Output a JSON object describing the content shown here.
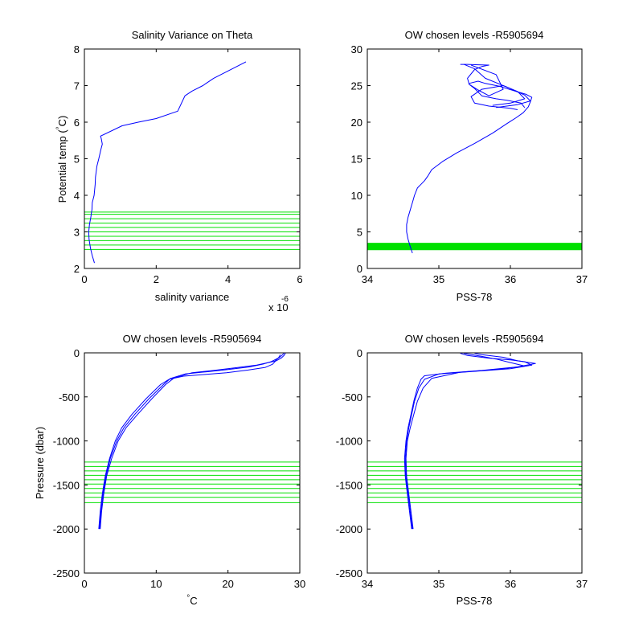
{
  "colors": {
    "profile": "#0000ff",
    "levels": "#00e000",
    "axis": "#000000",
    "background": "#ffffff"
  },
  "chart_data": [
    {
      "id": "tl",
      "type": "line",
      "title": "Salinity Variance on Theta",
      "xlabel": "salinity variance",
      "ylabel": "Potential temp (°C)",
      "ylabel_parts": [
        "Potential temp (",
        "°",
        "C)"
      ],
      "x_exponent_label": {
        "base": "x 10",
        "exp": "-6"
      },
      "xlim": [
        0,
        6
      ],
      "ylim": [
        2,
        8
      ],
      "xticks": [
        0,
        2,
        4,
        6
      ],
      "yticks": [
        2,
        3,
        4,
        5,
        6,
        7,
        8
      ],
      "xtick_labels": [
        "0",
        "2",
        "4",
        "6"
      ],
      "ytick_labels": [
        "2",
        "3",
        "4",
        "5",
        "6",
        "7",
        "8"
      ],
      "series": [
        {
          "x": [
            0.28,
            0.22,
            0.17,
            0.13,
            0.12,
            0.14,
            0.18,
            0.2,
            0.21,
            0.22,
            0.27,
            0.3,
            0.31,
            0.35,
            0.4,
            0.46,
            0.5,
            0.47,
            0.45,
            1.05,
            1.5,
            2.0,
            2.6,
            2.8,
            3.0,
            3.3,
            3.6,
            4.0,
            4.5
          ],
          "y": [
            2.15,
            2.35,
            2.55,
            2.8,
            3.0,
            3.2,
            3.4,
            3.55,
            3.6,
            3.8,
            4.0,
            4.3,
            4.5,
            4.8,
            5.0,
            5.25,
            5.4,
            5.55,
            5.62,
            5.9,
            6.0,
            6.1,
            6.3,
            6.72,
            6.85,
            7.0,
            7.2,
            7.4,
            7.65
          ]
        }
      ],
      "level_lines": [
        2.52,
        2.64,
        2.76,
        2.88,
        3.0,
        3.12,
        3.24,
        3.36,
        3.48,
        3.54
      ]
    },
    {
      "id": "tr",
      "type": "line",
      "title": "OW chosen levels -R5905694",
      "xlabel": "PSS-78",
      "ylabel": "",
      "xlim": [
        34,
        37
      ],
      "ylim": [
        0,
        30
      ],
      "xticks": [
        34,
        35,
        36,
        37
      ],
      "yticks": [
        0,
        5,
        10,
        15,
        20,
        25,
        30
      ],
      "xtick_labels": [
        "34",
        "35",
        "36",
        "37"
      ],
      "ytick_labels": [
        "0",
        "5",
        "10",
        "15",
        "20",
        "25",
        "30"
      ],
      "series": [
        {
          "x": [
            34.63,
            34.6,
            34.57,
            34.55,
            34.55,
            34.57,
            34.6,
            34.63,
            34.66,
            34.7,
            34.75,
            34.8,
            34.85,
            34.9,
            35.05,
            35.25,
            35.5,
            35.75,
            35.95,
            36.08,
            36.18,
            36.25,
            36.28,
            36.3,
            36.22,
            36.05,
            35.85,
            35.65,
            35.55,
            35.42,
            35.4,
            35.5,
            35.6,
            35.7,
            35.55,
            35.4,
            35.3
          ],
          "y": [
            2.1,
            3.0,
            4.0,
            5.0,
            6.0,
            7.0,
            8.0,
            9.0,
            10.0,
            11.0,
            11.5,
            12.0,
            12.7,
            13.5,
            14.6,
            15.8,
            17.1,
            18.5,
            19.8,
            20.6,
            21.3,
            22.1,
            22.8,
            23.4,
            23.8,
            24.3,
            24.9,
            25.3,
            25.6,
            25.3,
            26.0,
            27.2,
            27.6,
            27.8,
            27.85,
            27.9,
            27.9
          ]
        },
        {
          "x": [
            36.2,
            36.15,
            35.95,
            35.8,
            35.6,
            35.5,
            35.42,
            35.55,
            35.7,
            35.9,
            35.8,
            35.45
          ],
          "y": [
            22.0,
            22.6,
            23.0,
            23.2,
            23.6,
            24.6,
            25.2,
            24.4,
            23.6,
            24.5,
            26.5,
            27.8
          ]
        },
        {
          "x": [
            36.1,
            36.0,
            35.7,
            35.5,
            35.45,
            35.6,
            35.9,
            36.1,
            36.2,
            36.0,
            35.75
          ],
          "y": [
            21.7,
            21.9,
            22.2,
            22.6,
            23.5,
            24.5,
            25.0,
            24.2,
            23.2,
            22.6,
            22.3
          ]
        },
        {
          "x": [
            35.35,
            35.5,
            35.65,
            35.95,
            36.2,
            36.28,
            36.1,
            35.8
          ],
          "y": [
            27.9,
            27.3,
            26.0,
            24.8,
            23.7,
            22.9,
            22.4,
            22.0
          ]
        }
      ],
      "level_band": [
        2.5,
        3.5
      ]
    },
    {
      "id": "bl",
      "type": "line",
      "title": "OW chosen levels -R5905694",
      "xlabel": "°C",
      "xlabel_parts": [
        "°",
        "C"
      ],
      "ylabel": "Pressure (dbar)",
      "xlim": [
        0,
        30
      ],
      "ylim": [
        -2500,
        0
      ],
      "xticks": [
        0,
        10,
        20,
        30
      ],
      "yticks": [
        -2500,
        -2000,
        -1500,
        -1000,
        -500,
        0
      ],
      "xtick_labels": [
        "0",
        "10",
        "20",
        "30"
      ],
      "ytick_labels": [
        "-2500",
        "-2000",
        "-1500",
        "-1000",
        "-500",
        "0"
      ],
      "series": [
        {
          "x": [
            2.1,
            2.3,
            2.6,
            3.0,
            3.6,
            4.5,
            5.5,
            7.0,
            9.0,
            11.0,
            12.0,
            14.0,
            17.0,
            20.0,
            23.0,
            25.0,
            26.0,
            26.5,
            27.2,
            27.6,
            27.8
          ],
          "y": [
            -2000,
            -1800,
            -1600,
            -1400,
            -1200,
            -1000,
            -850,
            -700,
            -520,
            -360,
            -290,
            -240,
            -215,
            -190,
            -160,
            -125,
            -100,
            -80,
            -50,
            -20,
            -5
          ]
        },
        {
          "x": [
            2.0,
            2.2,
            2.5,
            2.9,
            3.5,
            4.3,
            5.2,
            6.6,
            8.6,
            10.6,
            11.8,
            13.8,
            16.8,
            19.8,
            22.8,
            25.2,
            26.2,
            26.6,
            27.4,
            27.8,
            28.0
          ],
          "y": [
            -2000,
            -1800,
            -1600,
            -1400,
            -1200,
            -1000,
            -850,
            -700,
            -520,
            -360,
            -300,
            -265,
            -245,
            -225,
            -195,
            -165,
            -130,
            -95,
            -60,
            -30,
            -5
          ]
        },
        {
          "x": [
            2.2,
            2.4,
            2.7,
            3.1,
            3.8,
            4.7,
            5.8,
            7.4,
            9.4,
            11.3,
            12.5,
            15.0,
            18.0,
            21.0,
            24.0,
            26.5,
            27.0,
            27.3
          ],
          "y": [
            -2000,
            -1800,
            -1600,
            -1400,
            -1200,
            -1000,
            -850,
            -700,
            -520,
            -360,
            -285,
            -225,
            -200,
            -170,
            -140,
            -95,
            -60,
            -20
          ]
        }
      ],
      "level_lines": [
        -1240,
        -1290,
        -1340,
        -1390,
        -1440,
        -1490,
        -1540,
        -1590,
        -1640,
        -1700
      ]
    },
    {
      "id": "br",
      "type": "line",
      "title": "OW chosen levels -R5905694",
      "xlabel": "PSS-78",
      "ylabel": "",
      "xlim": [
        34,
        37
      ],
      "ylim": [
        -2500,
        0
      ],
      "xticks": [
        34,
        35,
        36,
        37
      ],
      "yticks": [
        -2500,
        -2000,
        -1500,
        -1000,
        -500,
        0
      ],
      "xtick_labels": [
        "34",
        "35",
        "36",
        "37"
      ],
      "ytick_labels": [
        "-2500",
        "-2000",
        "-1500",
        "-1000",
        "-500",
        "0"
      ],
      "series": [
        {
          "x": [
            34.63,
            34.6,
            34.57,
            34.54,
            34.53,
            34.55,
            34.58,
            34.62,
            34.66,
            34.72,
            34.8,
            35.0,
            35.5,
            36.0,
            36.3,
            36.2,
            36.0,
            35.7,
            35.4,
            35.3
          ],
          "y": [
            -2000,
            -1800,
            -1600,
            -1400,
            -1200,
            -1000,
            -850,
            -700,
            -550,
            -400,
            -300,
            -240,
            -210,
            -180,
            -140,
            -100,
            -80,
            -60,
            -30,
            -5
          ]
        },
        {
          "x": [
            34.62,
            34.59,
            34.56,
            34.53,
            34.52,
            34.54,
            34.57,
            34.61,
            34.65,
            34.7,
            34.75,
            34.8,
            35.1,
            35.6,
            36.1,
            36.35,
            36.1,
            35.9,
            35.6,
            35.5
          ],
          "y": [
            -2000,
            -1800,
            -1600,
            -1400,
            -1200,
            -1000,
            -850,
            -700,
            -550,
            -400,
            -300,
            -260,
            -230,
            -200,
            -160,
            -120,
            -90,
            -50,
            -20,
            -5
          ]
        },
        {
          "x": [
            34.64,
            34.61,
            34.58,
            34.55,
            34.54,
            34.56,
            34.6,
            34.65,
            34.7,
            34.78,
            34.9,
            35.3,
            35.8,
            36.2,
            36.0,
            35.8,
            35.6,
            35.35
          ],
          "y": [
            -2000,
            -1800,
            -1600,
            -1400,
            -1200,
            -1000,
            -850,
            -700,
            -550,
            -400,
            -290,
            -220,
            -190,
            -150,
            -110,
            -70,
            -40,
            -5
          ]
        }
      ],
      "level_lines": [
        -1240,
        -1290,
        -1340,
        -1390,
        -1440,
        -1490,
        -1540,
        -1590,
        -1640,
        -1700
      ]
    }
  ]
}
